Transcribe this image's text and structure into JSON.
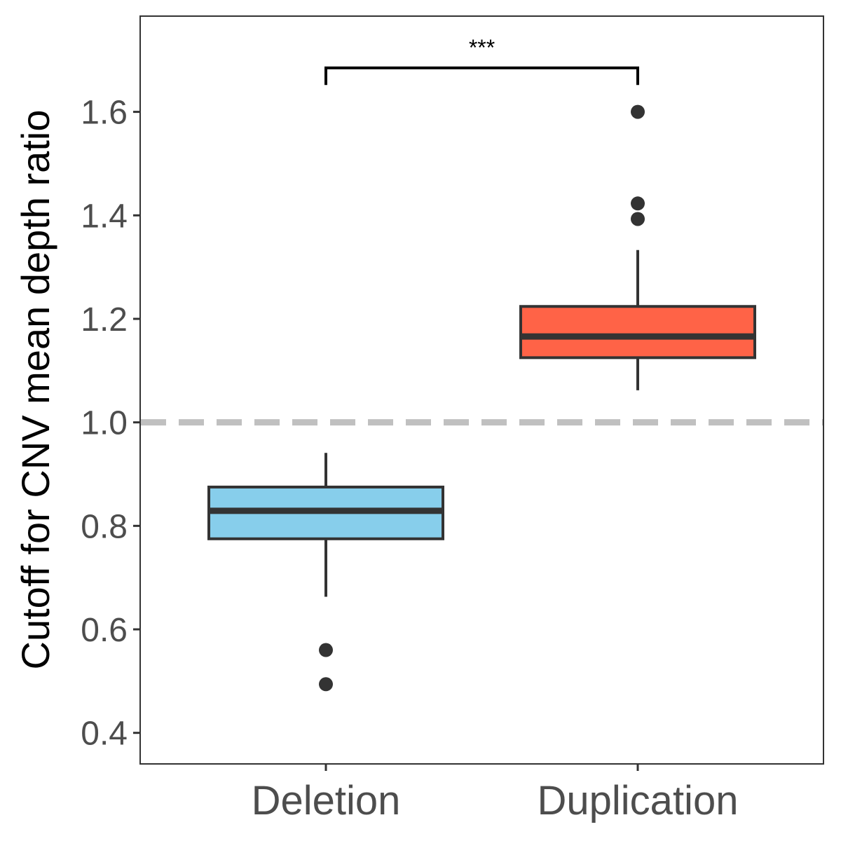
{
  "chart_data": {
    "type": "boxplot",
    "title": "",
    "xlabel": "",
    "ylabel": "Cutoff for CNV mean depth ratio",
    "categories": [
      "Deletion",
      "Duplication"
    ],
    "ylim": [
      0.34,
      1.785
    ],
    "yticks": [
      0.4,
      0.6,
      0.8,
      1.0,
      1.2,
      1.4,
      1.6
    ],
    "ytick_labels": [
      "0.4",
      "0.6",
      "0.8",
      "1.0",
      "1.2",
      "1.4",
      "1.6"
    ],
    "grid": false,
    "legend": "none",
    "boxes": [
      {
        "category": "Deletion",
        "color": "#87CEEB",
        "whisker_low": 0.663,
        "q1": 0.775,
        "median": 0.829,
        "q3": 0.875,
        "whisker_high": 0.941,
        "outliers": [
          0.56,
          0.494
        ]
      },
      {
        "category": "Duplication",
        "color": "#FF6347",
        "whisker_low": 1.062,
        "q1": 1.125,
        "median": 1.166,
        "q3": 1.224,
        "whisker_high": 1.333,
        "outliers": [
          1.6,
          1.423,
          1.393
        ]
      }
    ],
    "reference_line": {
      "y": 1.0,
      "style": "dashed",
      "color": "#C0C0C0"
    },
    "significance": {
      "label": "***",
      "from": "Deletion",
      "to": "Duplication",
      "y": 1.685,
      "tip_y": 1.652
    },
    "colors": {
      "outline": "#333333",
      "points": "#333333",
      "panel_border": "#333333",
      "tick_text": "#4d4d4d",
      "axis_title": "#000000"
    }
  }
}
